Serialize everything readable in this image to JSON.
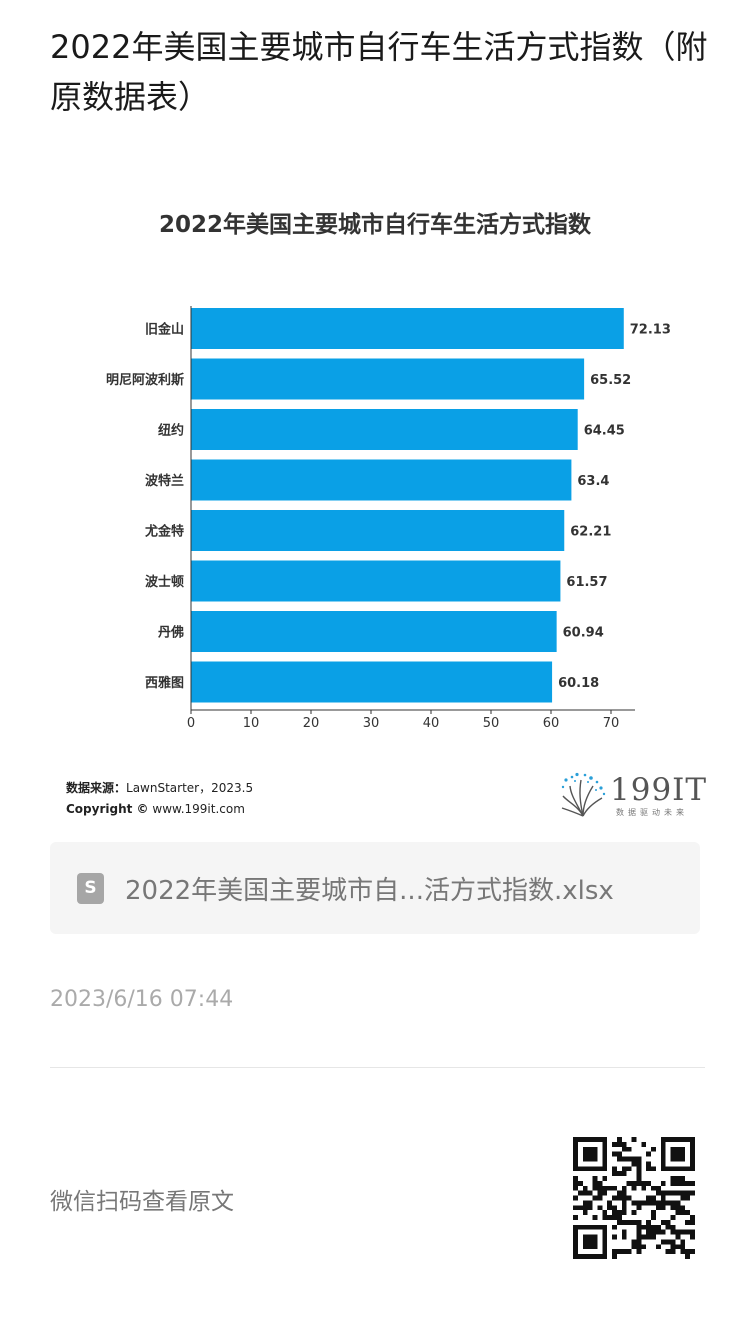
{
  "article": {
    "title": "2022年美国主要城市自行车生活方式指数（附原数据表）"
  },
  "chart_data": {
    "type": "bar",
    "orientation": "horizontal",
    "title": "2022年美国主要城市自行车生活方式指数",
    "categories": [
      "旧金山",
      "明尼阿波利斯",
      "纽约",
      "波特兰",
      "尤金特",
      "波士顿",
      "丹佛",
      "西雅图"
    ],
    "values": [
      72.13,
      65.52,
      64.45,
      63.4,
      62.21,
      61.57,
      60.94,
      60.18
    ],
    "value_labels": [
      "72.13",
      "65.52",
      "64.45",
      "63.4",
      "62.21",
      "61.57",
      "60.94",
      "60.18"
    ],
    "xlim": [
      0,
      72
    ],
    "xticks": [
      "0",
      "10",
      "20",
      "30",
      "40",
      "50",
      "60",
      "70"
    ],
    "xlabel": "",
    "ylabel": "",
    "grid": false,
    "bar_color": "#0aa0e6"
  },
  "source": {
    "label": "数据来源：",
    "text": "LawnStarter，2023.5",
    "copyright_label": "Copyright ©",
    "copyright_text": "www.199it.com"
  },
  "brand": {
    "name": "199IT",
    "tagline": "数据驱动未来",
    "icon": "dandelion-logo-icon"
  },
  "attachment": {
    "icon": "spreadsheet-file-icon",
    "icon_letter": "S",
    "filename": "2022年美国主要城市自...活方式指数.xlsx"
  },
  "timestamp": "2023/6/16 07:44",
  "qr": {
    "caption": "微信扫码查看原文",
    "icon": "qr-code-icon"
  }
}
